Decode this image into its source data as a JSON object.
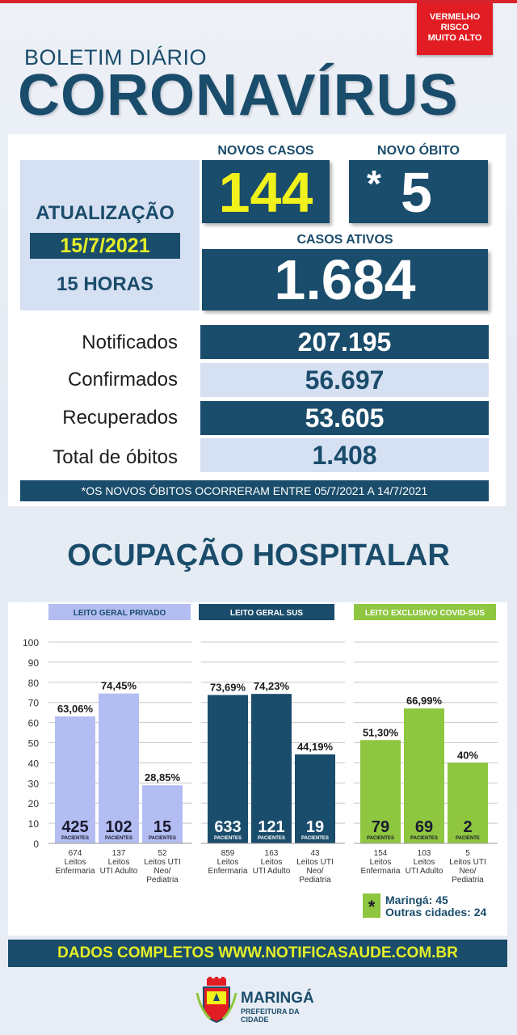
{
  "risk_badge": [
    "VERMELHO",
    "RISCO",
    "MUITO ALTO"
  ],
  "header": {
    "subtitle": "BOLETIM DIÁRIO",
    "title": "CORONAVÍRUS"
  },
  "update": {
    "label": "ATUALIZAÇÃO",
    "date": "15/7/2021",
    "hour": "15 HORAS"
  },
  "new_cases": {
    "label": "NOVOS CASOS",
    "value": "144"
  },
  "new_death": {
    "label": "NOVO ÓBITO",
    "value": "5",
    "marker": "*"
  },
  "active_cases": {
    "label": "CASOS ATIVOS",
    "value": "1.684"
  },
  "rows": [
    {
      "label": "Notificados",
      "value": "207.195"
    },
    {
      "label": "Confirmados",
      "value": "56.697"
    },
    {
      "label": "Recuperados",
      "value": "53.605"
    },
    {
      "label": "Total de óbitos",
      "value": "1.408"
    }
  ],
  "note": "*OS NOVOS ÓBITOS OCORRERAM ENTRE 05/7/2021 A 14/7/2021",
  "section_title": "OCUPAÇÃO HOSPITALAR",
  "chart_data": {
    "type": "bar",
    "ylim": [
      0,
      100
    ],
    "y_ticks": [
      0,
      10,
      20,
      30,
      40,
      50,
      60,
      70,
      80,
      90,
      100
    ],
    "grid": true,
    "patients_unit": "PACIENTES",
    "patients_unit_single": "PACIENTE",
    "groups": [
      {
        "name": "LEITO GERAL PRIVADO",
        "header_color": "#b4bdf2",
        "header_text_color": "#1a4c6b",
        "bar_color": "#b4bdf2",
        "count_color": "#1a1a2e",
        "bars": [
          {
            "value": 63.06,
            "label": "63,06%",
            "patients": "425",
            "beds": "674",
            "desc": [
              "Leitos",
              "Enfermaria"
            ]
          },
          {
            "value": 74.45,
            "label": "74,45%",
            "patients": "102",
            "beds": "137",
            "desc": [
              "Leitos",
              "UTI Adulto"
            ]
          },
          {
            "value": 28.85,
            "label": "28,85%",
            "patients": "15",
            "beds": "52",
            "desc": [
              "Leitos UTI",
              "Neo/",
              "Pediatria"
            ]
          }
        ]
      },
      {
        "name": "LEITO GERAL SUS",
        "header_color": "#1a4c6b",
        "header_text_color": "#ffffff",
        "bar_color": "#1a4c6b",
        "count_color": "#ffffff",
        "bars": [
          {
            "value": 73.69,
            "label": "73,69%",
            "patients": "633",
            "beds": "859",
            "desc": [
              "Leitos",
              "Enfermaria"
            ]
          },
          {
            "value": 74.23,
            "label": "74,23%",
            "patients": "121",
            "beds": "163",
            "desc": [
              "Leitos",
              "UTI Adulto"
            ]
          },
          {
            "value": 44.19,
            "label": "44,19%",
            "patients": "19",
            "beds": "43",
            "desc": [
              "Leitos UTI",
              "Neo/",
              "Pediatria"
            ]
          }
        ]
      },
      {
        "name": "LEITO EXCLUSIVO COVID-SUS",
        "header_color": "#8ec63f",
        "header_text_color": "#ffffff",
        "bar_color": "#8ec63f",
        "count_color": "#1a1a2e",
        "bars": [
          {
            "value": 51.3,
            "label": "51,30%",
            "patients": "79",
            "beds": "154",
            "desc": [
              "Leitos",
              "Enfermaria"
            ]
          },
          {
            "value": 66.99,
            "label": "66,99%",
            "patients": "69",
            "beds": "103",
            "desc": [
              "Leitos",
              "UTI Adulto"
            ]
          },
          {
            "value": 40,
            "label": "40%",
            "patients": "2",
            "beds": "5",
            "desc": [
              "Leitos UTI",
              "Neo/",
              "Pediatria"
            ],
            "single": true
          }
        ]
      }
    ],
    "legend": {
      "marker": "*",
      "lines": [
        "Maringá: 45",
        "Outras cidades: 24"
      ]
    }
  },
  "footer": "DADOS COMPLETOS  WWW.NOTIFICASAUDE.COM.BR",
  "logo": {
    "name": "MARINGÁ",
    "subtitle": "PREFEITURA DA CIDADE"
  },
  "colors": {
    "navy": "#1a4c6b",
    "light_blue": "#d5e0f2",
    "yellow": "#f1f21b",
    "red": "#e21c23",
    "green": "#8ec63f",
    "lavender": "#b4bdf2"
  }
}
